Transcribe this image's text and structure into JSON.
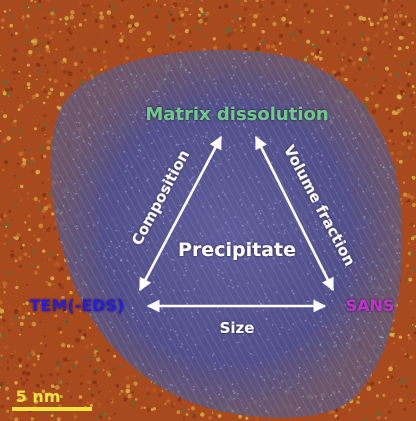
{
  "diagram": {
    "nodes": {
      "top": {
        "label": "Matrix dissolution",
        "color": "#6fc98a"
      },
      "left": {
        "label": "TEM(-EDS)",
        "color": "#2a1fd6"
      },
      "right": {
        "label": "SANS",
        "color": "#c231c9"
      }
    },
    "center_label": "Precipitate",
    "edges": {
      "left_top": "Composition",
      "top_right": "Volume fraction",
      "left_right": "Size"
    }
  },
  "scale_bar": {
    "label": "5 nm",
    "color": "#f1e33a"
  },
  "colors": {
    "matrix": "#a8491e",
    "particle": "#4e5296",
    "arrow": "#ffffff",
    "text": "#ffffff"
  }
}
